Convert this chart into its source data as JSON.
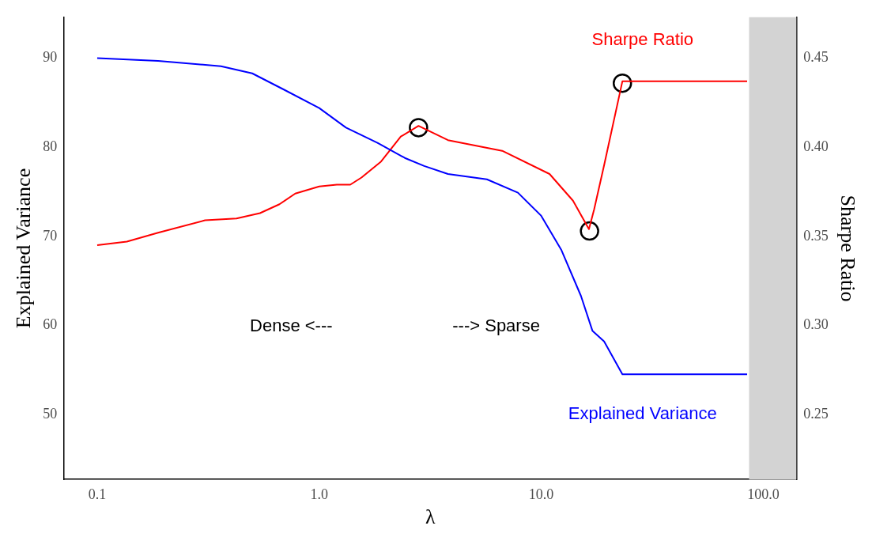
{
  "chart_data": {
    "type": "line",
    "xlabel": "λ",
    "ylabel": "Explained Variance",
    "y2label": "Sharpe Ratio",
    "log": "x",
    "grid": false,
    "legend": false,
    "xlim": [
      0.071,
      141
    ],
    "xticks": [
      {
        "value": 0.1,
        "label": "0.1"
      },
      {
        "value": 1,
        "label": "1.0"
      },
      {
        "value": 10,
        "label": "10.0"
      },
      {
        "value": 100,
        "label": "100.0"
      }
    ],
    "ylim": [
      42.7,
      94.6
    ],
    "yticks": [
      50,
      60,
      70,
      80,
      90
    ],
    "y2lim": [
      0.2135,
      0.473
    ],
    "y2ticks": [
      0.25,
      {
        "value": 0.3,
        "label": "0.30"
      },
      0.35,
      {
        "value": 0.4,
        "label": "0.40"
      },
      0.45
    ],
    "bands": [
      {
        "axis": "x",
        "from": 86.3,
        "to": 141,
        "color": "#d3d3d3"
      }
    ],
    "annotations": [
      "Dense <---",
      "---> Sparse"
    ],
    "series": [
      {
        "name": "Explained Variance",
        "color": "#0000ff",
        "marker": "none",
        "x": [
          0.1,
          0.188,
          0.361,
          0.499,
          0.69,
          1.0,
          1.32,
          1.83,
          2.43,
          2.97,
          3.8,
          5.69,
          7.85,
          10.0,
          12.3,
          15.1,
          17.0,
          19.2,
          23.2,
          84.6
        ],
        "values": [
          90,
          89.7,
          89.1,
          88.3,
          86.5,
          84.4,
          82.2,
          80.5,
          78.8,
          77.9,
          77.0,
          76.4,
          74.9,
          72.3,
          68.5,
          63.3,
          59.4,
          58.2,
          54.5,
          54.5
        ]
      },
      {
        "name": "Sharpe Ratio",
        "axis": "y2",
        "color": "#ff0000",
        "marker": "none",
        "x": [
          0.1,
          0.136,
          0.188,
          0.306,
          0.424,
          0.541,
          0.662,
          0.78,
          1.0,
          1.2,
          1.38,
          1.55,
          1.9,
          2.33,
          2.8,
          3.8,
          6.67,
          10.9,
          13.9,
          16.4,
          17.3,
          19.2,
          23.2,
          84.6
        ],
        "values": [
          0.345,
          0.347,
          0.352,
          0.359,
          0.36,
          0.363,
          0.368,
          0.374,
          0.378,
          0.379,
          0.379,
          0.383,
          0.392,
          0.406,
          0.412,
          0.404,
          0.398,
          0.385,
          0.37,
          0.354,
          0.365,
          0.39,
          0.437,
          0.437
        ]
      },
      {
        "type": "scatter",
        "axis": "y2",
        "color": "#000000",
        "marker": "circle",
        "x": [
          2.8,
          16.5,
          23.2
        ],
        "values": [
          0.411,
          0.353,
          0.436
        ]
      }
    ]
  }
}
